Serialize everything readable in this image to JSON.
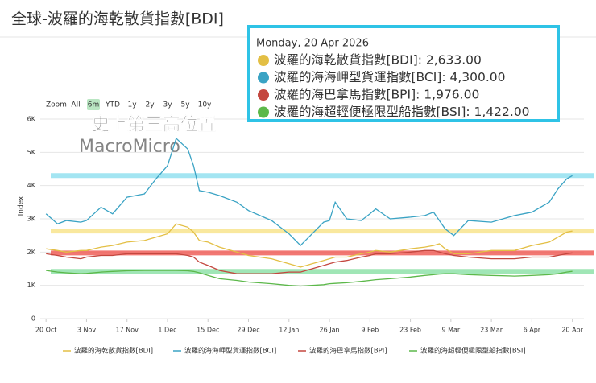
{
  "chart_data": {
    "type": "line",
    "title": "全球-波羅的海乾散貨指數[BDI]",
    "annotation": "史上第三高位置",
    "watermark": "MacroMicro",
    "y_label": "Index",
    "range_selector": {
      "label": "Zoom",
      "buttons": [
        "All",
        "6m",
        "YTD",
        "1y",
        "2y",
        "3y",
        "5y",
        "10y"
      ],
      "selected": 1
    },
    "x": [
      0,
      4,
      7,
      12,
      14,
      19,
      23,
      28,
      34,
      38,
      42,
      45,
      49,
      51,
      53,
      56,
      60,
      66,
      70,
      78,
      84,
      88,
      92,
      96,
      98,
      100,
      104,
      109,
      112,
      114,
      119,
      126,
      131,
      134,
      136,
      138,
      141,
      146,
      154,
      162,
      168,
      174,
      177,
      180,
      182
    ],
    "xlim": [
      -2,
      186
    ],
    "xticks": [
      {
        "value": 0,
        "label": "20 Oct"
      },
      {
        "value": 14,
        "label": "3 Nov"
      },
      {
        "value": 28,
        "label": "17 Nov"
      },
      {
        "value": 42,
        "label": "1 Dec"
      },
      {
        "value": 56,
        "label": "15 Dec"
      },
      {
        "value": 70,
        "label": "29 Dec"
      },
      {
        "value": 84,
        "label": "12 Jan"
      },
      {
        "value": 98,
        "label": "26 Jan"
      },
      {
        "value": 112,
        "label": "9 Feb"
      },
      {
        "value": 126,
        "label": "23 Feb"
      },
      {
        "value": 140,
        "label": "9 Mar"
      },
      {
        "value": 154,
        "label": "23 Mar"
      },
      {
        "value": 168,
        "label": "6 Apr"
      },
      {
        "value": 182,
        "label": "20 Apr"
      }
    ],
    "ylim": [
      0,
      6000
    ],
    "yticks": [
      0,
      {
        "value": 1000,
        "label": "1K"
      },
      {
        "value": 2000,
        "label": "2K"
      },
      {
        "value": 3000,
        "label": "3K"
      },
      {
        "value": 4000,
        "label": "4K"
      },
      {
        "value": 5000,
        "label": "5K"
      },
      {
        "value": 6000,
        "label": "6K"
      }
    ],
    "grid": true,
    "series": [
      {
        "name": "波羅的海乾散貨指數[BDI]",
        "color": "#e3bf45",
        "highlight_color": "#f8e48e",
        "values": [
          2100,
          2050,
          2000,
          2050,
          2050,
          2150,
          2200,
          2300,
          2350,
          2450,
          2550,
          2850,
          2750,
          2600,
          2350,
          2300,
          2150,
          2000,
          1900,
          1800,
          1650,
          1550,
          1650,
          1750,
          1800,
          1850,
          1850,
          1950,
          2000,
          2050,
          2000,
          2100,
          2150,
          2200,
          2250,
          2100,
          1950,
          1950,
          2050,
          2050,
          2200,
          2300,
          2450,
          2600,
          2633
        ]
      },
      {
        "name": "波羅的海海岬型貨運指數[BCI]",
        "color": "#3aa3c4",
        "highlight_color": "#94e1f0",
        "values": [
          3150,
          2850,
          2950,
          2900,
          2950,
          3350,
          3150,
          3650,
          3750,
          4200,
          4600,
          5420,
          5100,
          4600,
          3850,
          3800,
          3700,
          3500,
          3250,
          2950,
          2550,
          2200,
          2550,
          2900,
          2950,
          3500,
          3000,
          2950,
          3150,
          3300,
          3000,
          3050,
          3100,
          3200,
          2950,
          2700,
          2500,
          2950,
          2900,
          3100,
          3200,
          3500,
          3900,
          4200,
          4300
        ]
      },
      {
        "name": "波羅的海巴拿馬指數[BPI]",
        "color": "#c4473f",
        "highlight_color": "#f0605a",
        "values": [
          1950,
          1900,
          1850,
          1800,
          1850,
          1900,
          1900,
          1950,
          1950,
          1950,
          1950,
          1950,
          1900,
          1850,
          1700,
          1600,
          1450,
          1350,
          1350,
          1350,
          1400,
          1400,
          1500,
          1600,
          1650,
          1700,
          1750,
          1850,
          1900,
          1950,
          1950,
          2000,
          2050,
          2050,
          2000,
          1950,
          1900,
          1850,
          1800,
          1800,
          1850,
          1850,
          1900,
          1950,
          1976
        ]
      },
      {
        "name": "波羅的海超輕便極限型船指數[BSI]",
        "color": "#5cb84a",
        "highlight_color": "#90e2aa",
        "values": [
          1450,
          1400,
          1380,
          1350,
          1360,
          1400,
          1420,
          1440,
          1450,
          1450,
          1450,
          1450,
          1440,
          1420,
          1380,
          1300,
          1200,
          1150,
          1100,
          1050,
          1000,
          980,
          1000,
          1020,
          1050,
          1060,
          1080,
          1120,
          1150,
          1170,
          1200,
          1250,
          1300,
          1320,
          1340,
          1350,
          1350,
          1320,
          1300,
          1280,
          1300,
          1320,
          1350,
          1400,
          1422
        ]
      }
    ],
    "tooltip": {
      "date": "Monday, 20 Apr 2026",
      "entries": [
        "波羅的海乾散貨指數[BDI]: 2,633.00",
        "波羅的海海岬型貨運指數[BCI]: 4,300.00",
        "波羅的海巴拿馬指數[BPI]: 1,976.00",
        "波羅的海超輕便極限型船指數[BSI]: 1,422.00"
      ]
    }
  }
}
